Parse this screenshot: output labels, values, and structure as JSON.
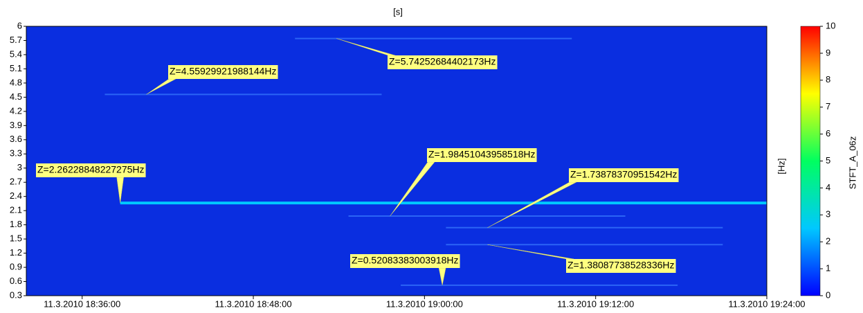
{
  "chart_data": {
    "type": "spectrogram",
    "x_label": "[s]",
    "y_label": "[Hz]",
    "colorbar_label": "STFT_A_06z",
    "xlim": [
      "2010-03-11T18:32:05",
      "2010-03-11T19:24:00"
    ],
    "xticks": [
      {
        "value": "2010-03-11T18:36:00",
        "label": "11.3.2010 18:36:00"
      },
      {
        "value": "2010-03-11T18:48:00",
        "label": "11.3.2010 18:48:00"
      },
      {
        "value": "2010-03-11T19:00:00",
        "label": "11.3.2010 19:00:00"
      },
      {
        "value": "2010-03-11T19:12:00",
        "label": "11.3.2010 19:12:00"
      },
      {
        "value": "2010-03-11T19:24:00",
        "label": "11.3.2010 19:24:00"
      }
    ],
    "ylim": [
      0.3,
      6
    ],
    "yticks": [
      0.3,
      0.6,
      0.9,
      1.2,
      1.5,
      1.8,
      2.1,
      2.4,
      2.7,
      3,
      3.3,
      3.6,
      3.9,
      4.2,
      4.5,
      4.8,
      5.1,
      5.4,
      5.7,
      6
    ],
    "clim": [
      0,
      10
    ],
    "cticks": [
      0,
      1,
      2,
      3,
      4,
      5,
      6,
      7,
      8,
      9,
      10
    ],
    "colormap": [
      "#0000ff",
      "#00c8ff",
      "#00ff60",
      "#ffff00",
      "#ff0000"
    ],
    "background_color": "#0a2ee0",
    "annotations": [
      {
        "x": "2010-03-11T18:40:30",
        "y": 4.55929921988144,
        "label": "Z=4.55929921988144Hz"
      },
      {
        "x": "2010-03-11T18:53:50",
        "y": 5.74252684402173,
        "label": "Z=5.74252684402173Hz"
      },
      {
        "x": "2010-03-11T18:38:40",
        "y": 2.26228848227275,
        "label": "Z=2.26228848227275Hz"
      },
      {
        "x": "2010-03-11T18:57:35",
        "y": 1.98451043958518,
        "label": "Z=1.98451043958518Hz"
      },
      {
        "x": "2010-03-11T19:04:25",
        "y": 1.73878370951542,
        "label": "Z=1.73878370951542Hz"
      },
      {
        "x": "2010-03-11T19:04:25",
        "y": 1.38087738528336,
        "label": "Z=1.38087738528336Hz"
      },
      {
        "x": "2010-03-11T19:01:15",
        "y": 0.52083383003918,
        "label": "Z=0.52083383003918Hz"
      }
    ]
  }
}
